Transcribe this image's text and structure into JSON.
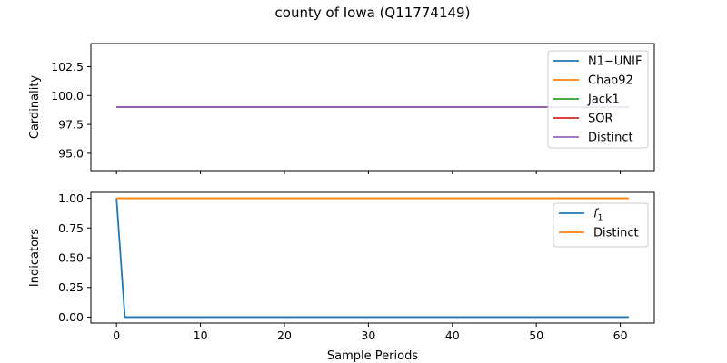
{
  "figure": {
    "title": "county of Iowa (Q11774149)"
  },
  "chart_data": [
    {
      "type": "line",
      "ylabel": "Cardinality",
      "xlabel": "",
      "xlim": [
        -3.05,
        64.05
      ],
      "ylim": [
        93.5,
        104.5
      ],
      "yticks": [
        95.0,
        97.5,
        100.0,
        102.5
      ],
      "ytick_labels": [
        "95.0",
        "97.5",
        "100.0",
        "102.5"
      ],
      "xticks": [
        0,
        10,
        20,
        30,
        40,
        50,
        60
      ],
      "xtick_labels": [
        "",
        "",
        "",
        "",
        "",
        "",
        ""
      ],
      "grid": false,
      "legend_position": "upper right",
      "x_range": [
        0,
        61
      ],
      "series": [
        {
          "name": "N1−UNIF",
          "color": "#1f77b4",
          "values": [
            99,
            99
          ]
        },
        {
          "name": "Chao92",
          "color": "#ff7f0e",
          "values": [
            99,
            99
          ]
        },
        {
          "name": "Jack1",
          "color": "#2ca02c",
          "values": [
            99,
            99
          ]
        },
        {
          "name": "SOR",
          "color": "#d62728",
          "values": [
            99,
            99
          ]
        },
        {
          "name": "Distinct",
          "color": "#9467bd",
          "values": [
            99,
            99
          ]
        }
      ]
    },
    {
      "type": "line",
      "ylabel": "Indicators",
      "xlabel": "Sample Periods",
      "xlim": [
        -3.05,
        64.05
      ],
      "ylim": [
        -0.05,
        1.05
      ],
      "yticks": [
        0.0,
        0.25,
        0.5,
        0.75,
        1.0
      ],
      "ytick_labels": [
        "0.00",
        "0.25",
        "0.50",
        "0.75",
        "1.00"
      ],
      "xticks": [
        0,
        10,
        20,
        30,
        40,
        50,
        60
      ],
      "xtick_labels": [
        "0",
        "10",
        "20",
        "30",
        "40",
        "50",
        "60"
      ],
      "grid": false,
      "legend_position": "upper right",
      "series": [
        {
          "name": "f",
          "name_subscript": "1",
          "color": "#1f77b4",
          "points": [
            [
              0,
              1.0
            ],
            [
              1,
              0.0
            ],
            [
              61,
              0.0
            ]
          ]
        },
        {
          "name": "Distinct",
          "color": "#ff7f0e",
          "points": [
            [
              0,
              1.0
            ],
            [
              61,
              1.0
            ]
          ]
        }
      ]
    }
  ]
}
